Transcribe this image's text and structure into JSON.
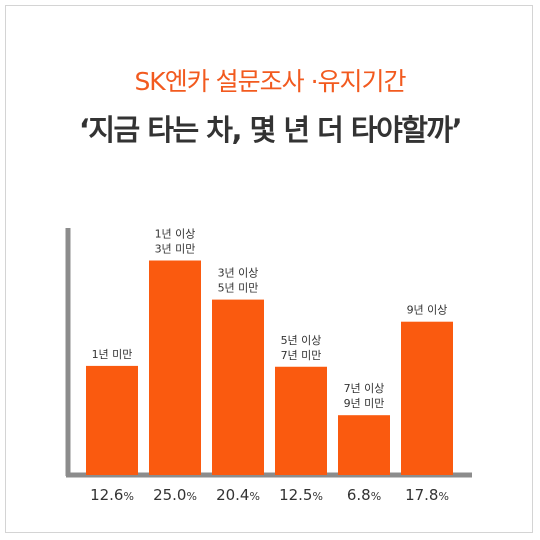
{
  "header": {
    "subtitle": "SK엔카 설문조사 ·유지기간",
    "title": "‘지금 타는 차, 몇 년 더 타야할까’"
  },
  "colors": {
    "accent": "#f25a1f",
    "bar": "#fa5a0f",
    "axis": "#8c8c8c",
    "text": "#333333"
  },
  "chart_data": {
    "type": "bar",
    "title": "‘지금 타는 차, 몇 년 더 타야할까’",
    "categories": [
      [
        "1년 미만"
      ],
      [
        "1년 이상",
        "3년 미만"
      ],
      [
        "3년 이상",
        "5년 미만"
      ],
      [
        "5년 이상",
        "7년 미만"
      ],
      [
        "7년 이상",
        "9년 미만"
      ],
      [
        "9년 이상"
      ]
    ],
    "values": [
      12.6,
      25.0,
      20.4,
      12.5,
      6.8,
      17.8
    ],
    "value_labels": [
      "12.6",
      "25.0",
      "20.4",
      "12.5",
      "6.8",
      "17.8"
    ],
    "unit": "%",
    "ylim": [
      0,
      28
    ],
    "grid": false,
    "legend": "none"
  }
}
